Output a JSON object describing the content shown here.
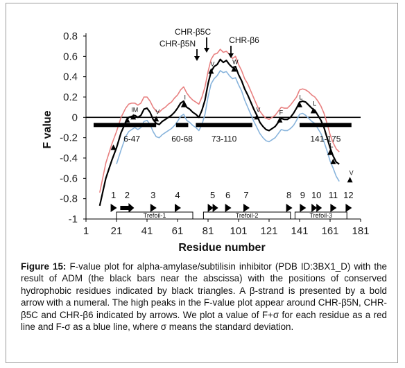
{
  "colors": {
    "f_value": "#000000",
    "f_plus_sigma": "#e88080",
    "f_minus_sigma": "#88b4dc",
    "triangle": "#000000"
  },
  "caption": {
    "label": "Figure 15:",
    "text": "F-value plot for alpha-amylase/subtilisin inhibitor (PDB ID:3BX1_D) with the result of ADM (the black bars near the abscissa) with the positions of conserved hydrophobic residues indicated by black triangles. A β-strand is presented by a bold arrow with a numeral. The high peaks in the F-value plot appear around CHR-β5N, CHR-β5C and CHR-β6 indicated by arrows. We plot a value of F+σ for each residue as a red line and F-σ as a blue line, where σ means the standard deviation."
  },
  "chart_data": {
    "type": "line",
    "xlabel": "Residue number",
    "ylabel": "F value",
    "xlim": [
      1,
      181
    ],
    "ylim": [
      -1,
      0.8
    ],
    "x_ticks": [
      1,
      21,
      41,
      61,
      81,
      101,
      121,
      141,
      161,
      181
    ],
    "y_ticks": [
      -1,
      -0.8,
      -0.6,
      -0.4,
      -0.2,
      0,
      0.2,
      0.4,
      0.6,
      0.8
    ],
    "y_tick_labels": [
      "-1",
      "-0.8",
      "-0.6",
      "-0.4",
      "-0.2",
      "0",
      "0.2",
      "0.4",
      "0.6",
      "0.8"
    ],
    "series": [
      {
        "key": "f",
        "x": [
          10,
          14,
          18,
          21,
          24,
          27,
          29,
          31,
          33,
          35,
          37,
          39,
          41,
          43,
          45,
          47,
          49,
          51,
          53,
          55,
          57,
          59,
          61,
          63,
          65,
          67,
          69,
          71,
          73,
          75,
          77,
          79,
          81,
          83,
          85,
          87,
          89,
          91,
          93,
          95,
          97,
          99,
          101,
          103,
          105,
          107,
          109,
          111,
          113,
          115,
          117,
          119,
          121,
          123,
          125,
          127,
          129,
          131,
          133,
          135,
          137,
          139,
          141,
          143,
          145,
          147,
          149,
          151,
          153,
          155,
          157,
          159,
          161,
          163,
          165,
          167
        ],
        "y": [
          -0.87,
          -0.6,
          -0.42,
          -0.3,
          -0.15,
          -0.05,
          0.0,
          0.01,
          0.02,
          0.0,
          0.02,
          0.08,
          0.09,
          0.05,
          -0.02,
          -0.06,
          -0.07,
          -0.04,
          -0.02,
          0.0,
          0.02,
          0.05,
          0.09,
          0.14,
          0.16,
          0.1,
          0.08,
          0.05,
          0.03,
          0.0,
          0.07,
          0.17,
          0.33,
          0.45,
          0.5,
          0.52,
          0.57,
          0.54,
          0.56,
          0.52,
          0.49,
          0.5,
          0.42,
          0.36,
          0.28,
          0.22,
          0.15,
          0.08,
          0.02,
          -0.05,
          -0.09,
          -0.12,
          -0.13,
          -0.11,
          -0.09,
          -0.05,
          -0.01,
          -0.02,
          -0.02,
          0.0,
          0.04,
          0.09,
          0.15,
          0.16,
          0.15,
          0.12,
          0.09,
          0.07,
          0.02,
          -0.03,
          -0.1,
          -0.2,
          -0.3,
          -0.38,
          -0.44,
          -0.46
        ]
      },
      {
        "key": "f_plus",
        "x": [
          10,
          14,
          18,
          21,
          24,
          27,
          29,
          31,
          33,
          35,
          37,
          39,
          41,
          43,
          45,
          47,
          49,
          51,
          53,
          55,
          57,
          59,
          61,
          63,
          65,
          67,
          69,
          71,
          73,
          75,
          77,
          79,
          81,
          83,
          85,
          87,
          89,
          91,
          93,
          95,
          97,
          99,
          101,
          103,
          105,
          107,
          109,
          111,
          113,
          115,
          117,
          119,
          121,
          123,
          125,
          127,
          129,
          131,
          133,
          135,
          137,
          139,
          141,
          143,
          145,
          147,
          149,
          151,
          153,
          155,
          157,
          159,
          161,
          163,
          165,
          167
        ],
        "y": [
          -0.74,
          -0.45,
          -0.26,
          -0.14,
          0.0,
          0.09,
          0.13,
          0.14,
          0.14,
          0.12,
          0.14,
          0.2,
          0.2,
          0.16,
          0.1,
          0.06,
          0.05,
          0.08,
          0.1,
          0.13,
          0.15,
          0.19,
          0.22,
          0.27,
          0.3,
          0.24,
          0.2,
          0.17,
          0.15,
          0.13,
          0.2,
          0.3,
          0.45,
          0.57,
          0.62,
          0.63,
          0.67,
          0.64,
          0.65,
          0.62,
          0.58,
          0.6,
          0.52,
          0.46,
          0.38,
          0.33,
          0.26,
          0.19,
          0.12,
          0.06,
          0.02,
          -0.01,
          -0.02,
          0.0,
          0.02,
          0.06,
          0.1,
          0.09,
          0.09,
          0.12,
          0.16,
          0.2,
          0.27,
          0.28,
          0.27,
          0.25,
          0.22,
          0.2,
          0.16,
          0.11,
          0.04,
          -0.06,
          -0.17,
          -0.25,
          -0.31,
          -0.34
        ]
      },
      {
        "key": "f_minus",
        "x": [
          21,
          24,
          27,
          29,
          31,
          33,
          35,
          37,
          39,
          41,
          43,
          45,
          47,
          49,
          51,
          53,
          55,
          57,
          59,
          61,
          63,
          65,
          67,
          69,
          71,
          73,
          75,
          77,
          79,
          81,
          83,
          85,
          87,
          89,
          91,
          93,
          95,
          97,
          99,
          101,
          103,
          105,
          107,
          109,
          111,
          113,
          115,
          117,
          119,
          121,
          123,
          125,
          127,
          129,
          131,
          133,
          135,
          137,
          139,
          141,
          143,
          145,
          147,
          149,
          151,
          153,
          155,
          157,
          159,
          161,
          163,
          165,
          167
        ],
        "y": [
          -0.46,
          -0.32,
          -0.19,
          -0.14,
          -0.12,
          -0.1,
          -0.12,
          -0.1,
          -0.04,
          -0.03,
          -0.07,
          -0.14,
          -0.19,
          -0.2,
          -0.17,
          -0.15,
          -0.13,
          -0.11,
          -0.08,
          -0.04,
          0.01,
          0.03,
          -0.03,
          -0.05,
          -0.08,
          -0.1,
          -0.13,
          -0.07,
          0.03,
          0.2,
          0.33,
          0.38,
          0.41,
          0.46,
          0.44,
          0.45,
          0.41,
          0.38,
          0.39,
          0.32,
          0.26,
          0.17,
          0.1,
          0.03,
          -0.04,
          -0.1,
          -0.16,
          -0.2,
          -0.23,
          -0.24,
          -0.22,
          -0.2,
          -0.16,
          -0.12,
          -0.13,
          -0.13,
          -0.11,
          -0.08,
          -0.03,
          0.03,
          0.04,
          0.02,
          -0.01,
          -0.04,
          -0.06,
          -0.11,
          -0.16,
          -0.24,
          -0.33,
          -0.43,
          -0.5,
          -0.58,
          -0.63
        ]
      }
    ],
    "adm_bars": [
      {
        "label": "6-47",
        "x0": 6,
        "x1": 47
      },
      {
        "label": "60-68",
        "x0": 60,
        "x1": 68
      },
      {
        "label": "73-110",
        "x0": 73,
        "x1": 110
      },
      {
        "label": "141-175",
        "x0": 141,
        "x1": 175
      }
    ],
    "triangles": [
      {
        "residue": "",
        "x": 19,
        "y": -0.3
      },
      {
        "residue": "",
        "x": 28,
        "y": -0.03
      },
      {
        "residue": "IM",
        "x": 32,
        "y": 0.0
      },
      {
        "residue": "V",
        "x": 47,
        "y": -0.02
      },
      {
        "residue": "I",
        "x": 65,
        "y": 0.12
      },
      {
        "residue": "V",
        "x": 83,
        "y": 0.45
      },
      {
        "residue": "W",
        "x": 98,
        "y": 0.47
      },
      {
        "residue": "V",
        "x": 113,
        "y": 0.0
      },
      {
        "residue": "F",
        "x": 128,
        "y": -0.03
      },
      {
        "residue": "L",
        "x": 141,
        "y": 0.12
      },
      {
        "residue": "L",
        "x": 150,
        "y": 0.06
      },
      {
        "residue": "L",
        "x": 161,
        "y": -0.35
      },
      {
        "residue": "",
        "x": 163,
        "y": -0.44
      },
      {
        "residue": "V",
        "x": 174,
        "y": -0.62
      }
    ],
    "beta_strands": [
      {
        "label": "1",
        "x": 19,
        "arrow": "filled"
      },
      {
        "label": "2",
        "x": 28,
        "arrow": "bold"
      },
      {
        "label": "3",
        "x": 45,
        "arrow": "filled"
      },
      {
        "label": "4",
        "x": 61,
        "arrow": "filled"
      },
      {
        "label": "5",
        "x": 84,
        "arrow": "double"
      },
      {
        "label": "6",
        "x": 94,
        "arrow": "filled"
      },
      {
        "label": "7",
        "x": 106,
        "arrow": "filled"
      },
      {
        "label": "8",
        "x": 134,
        "arrow": "filled"
      },
      {
        "label": "9",
        "x": 143,
        "arrow": "filled"
      },
      {
        "label": "10",
        "x": 152,
        "arrow": "double"
      },
      {
        "label": "11",
        "x": 163,
        "arrow": "filled"
      },
      {
        "label": "12",
        "x": 173,
        "arrow": "filled"
      }
    ],
    "domains": [
      {
        "label": "Trefoil-1",
        "x0": 21,
        "x1": 71
      },
      {
        "label": "Trefoil-2",
        "x0": 78,
        "x1": 135
      },
      {
        "label": "Trefoil-3",
        "x0": 138,
        "x1": 172
      }
    ],
    "peak_labels": {
      "b5c": "CHR-β5C",
      "b5n": "CHR-β5N",
      "b6": "CHR-β6"
    }
  }
}
